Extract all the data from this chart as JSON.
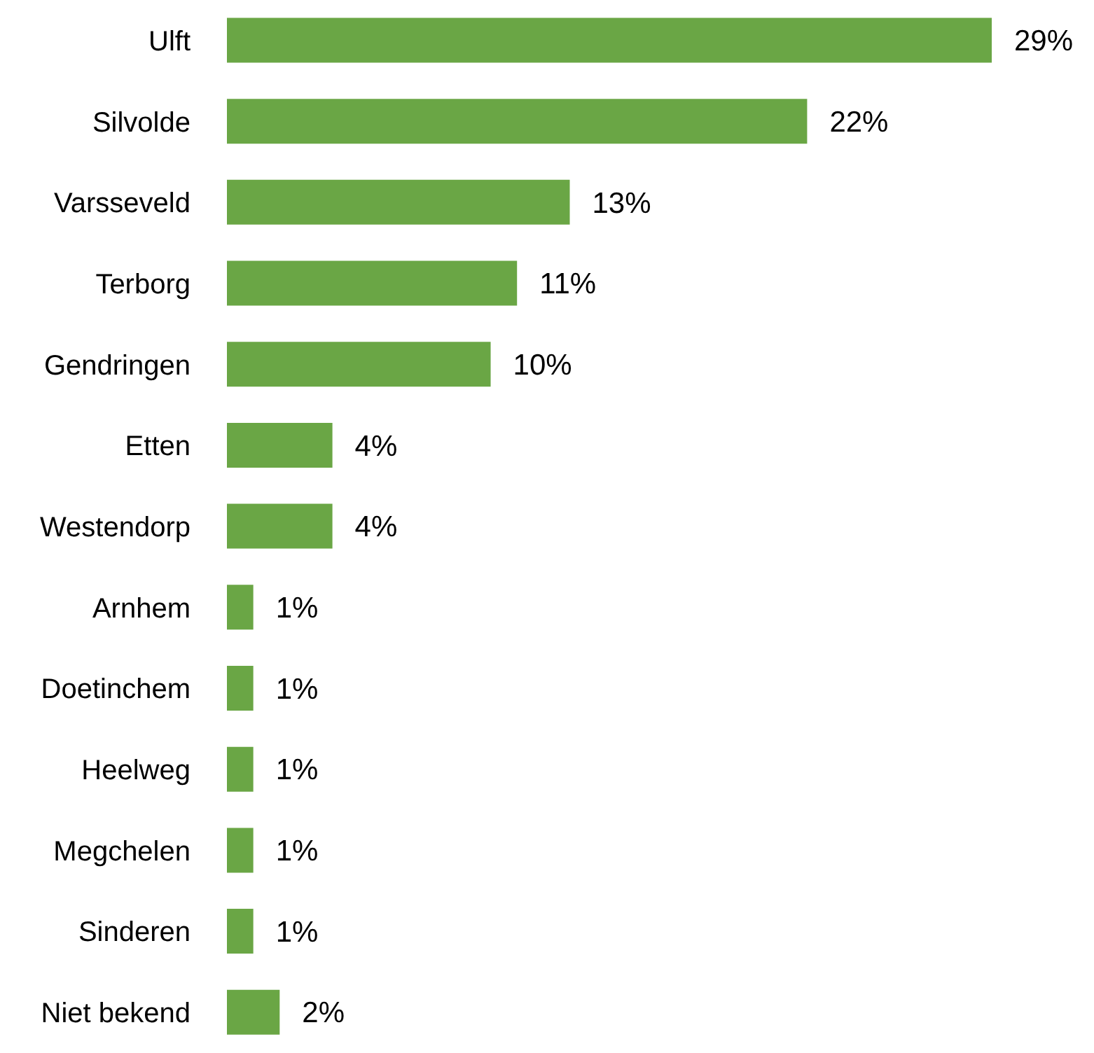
{
  "chart_data": {
    "type": "bar",
    "orientation": "horizontal",
    "categories": [
      "Ulft",
      "Silvolde",
      "Varsseveld",
      "Terborg",
      "Gendringen",
      "Etten",
      "Westendorp",
      "Arnhem",
      "Doetinchem",
      "Heelweg",
      "Megchelen",
      "Sinderen",
      "Niet bekend"
    ],
    "values": [
      29,
      22,
      13,
      11,
      10,
      4,
      4,
      1,
      1,
      1,
      1,
      1,
      2
    ],
    "value_labels": [
      "29%",
      "22%",
      "13%",
      "11%",
      "10%",
      "4%",
      "4%",
      "1%",
      "1%",
      "1%",
      "1%",
      "1%",
      "2%"
    ],
    "color": "#6aa645"
  }
}
